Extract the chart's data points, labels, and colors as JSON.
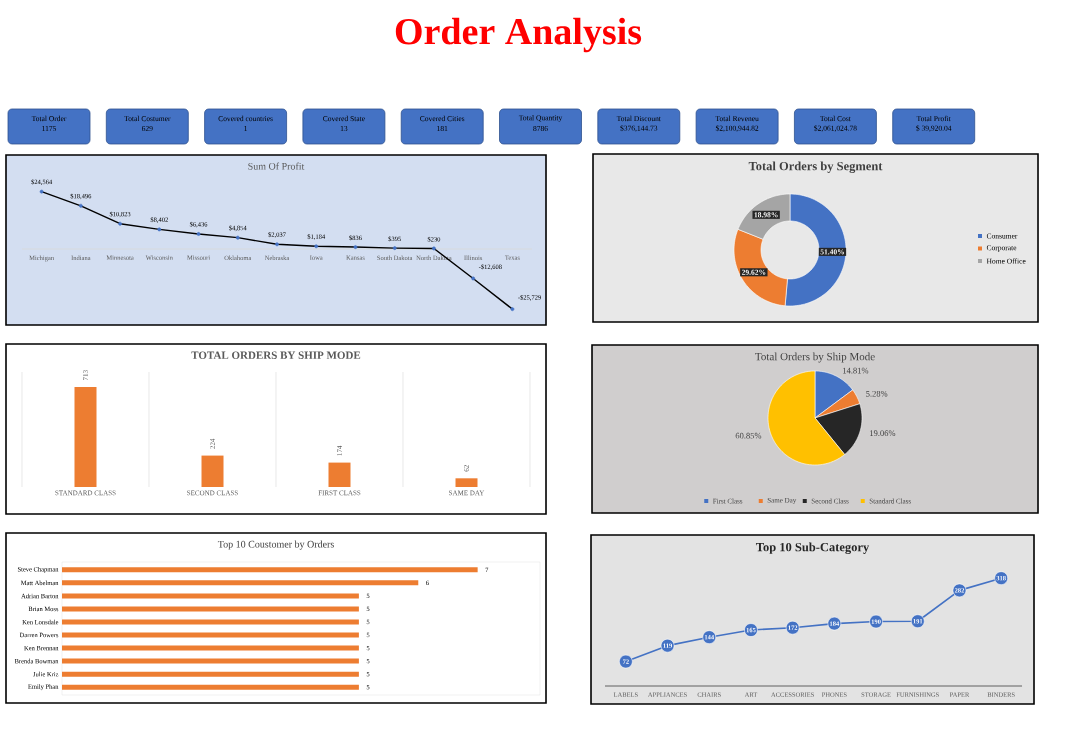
{
  "chart_data": [
    {
      "type": "other",
      "title": "Order Analysis",
      "annotations": [
        "Total Order",
        "1175",
        "Total Costumer",
        "629",
        "Covered countries",
        "1",
        "Covered State",
        "13",
        "Covered Cities",
        "181",
        "Total Quantity",
        "8786",
        "Total Discount",
        "$376,144.73",
        "Total Reveneu",
        "$2,100,944.82",
        "Total Cost",
        "$2,061,024.78",
        "Total Profit",
        "$  39,920.04"
      ]
    },
    {
      "type": "line",
      "title": "Sum Of Profit",
      "categories": [
        "Michigan",
        "Indiana",
        "Minnesota",
        "Wisconsin",
        "Missouri",
        "Oklahoma",
        "Nebraska",
        "Iowa",
        "Kansas",
        "South Dakota",
        "North Dakota",
        "Illinois",
        "Texas"
      ],
      "values": [
        24564,
        18496,
        10823,
        8402,
        6436,
        4854,
        2037,
        1184,
        836,
        395,
        230,
        -12608,
        -25729
      ],
      "value_labels": [
        "$24,564",
        "$18,496",
        "$10,823",
        "$8,402",
        "$6,436",
        "$4,854",
        "$2,037",
        "$1,184",
        "$836",
        "$395",
        "$230",
        "-$12,608",
        "-$25,729"
      ],
      "color": "#000000",
      "marker": "circle"
    },
    {
      "type": "donut",
      "title": "Total Orders by Segment",
      "categories": [
        "Consumer",
        "Corporate",
        "Home Office"
      ],
      "values": [
        51.4,
        29.62,
        18.98
      ],
      "value_labels": [
        "51.40%",
        "29.62%",
        "18.98%"
      ],
      "colors": [
        "#4472c4",
        "#ed7d31",
        "#a5a5a5"
      ],
      "legend": "right"
    },
    {
      "type": "bar",
      "title": "TOTAL ORDERS BY SHIP MODE",
      "categories": [
        "STANDARD CLASS",
        "SECOND CLASS",
        "FIRST CLASS",
        "SAME DAY"
      ],
      "values": [
        713,
        224,
        174,
        62
      ],
      "color": "#ed7d31",
      "data_labels": true,
      "grid": "x"
    },
    {
      "type": "pie",
      "title": "Total Orders by Ship Mode",
      "categories": [
        "First Class",
        "Same Day",
        "Second Class",
        "Standard Class"
      ],
      "values": [
        14.81,
        5.28,
        19.06,
        60.85
      ],
      "value_labels": [
        "14.81%",
        "5.28%",
        "19.06%",
        "60.85%"
      ],
      "colors": [
        "#4472c4",
        "#ed7d31",
        "#262626",
        "#ffc000"
      ],
      "legend": "bottom"
    },
    {
      "type": "bar",
      "orientation": "horizontal",
      "title": "Top 10 Coustomer by Orders",
      "categories": [
        "Steve Chapman",
        "Matt Abelman",
        "Adrian Barton",
        "Brian Moss",
        "Ken Lonsdale",
        "Darren Powers",
        "Ken Brennan",
        "Brenda Bowman",
        "Julie Kriz",
        "Emily Phan"
      ],
      "values": [
        7,
        6,
        5,
        5,
        5,
        5,
        5,
        5,
        5,
        5
      ],
      "color": "#ed7d31",
      "data_labels": true
    },
    {
      "type": "line",
      "title": "Top 10 Sub-Category",
      "categories": [
        "LABELS",
        "APPLIANCES",
        "CHAIRS",
        "ART",
        "ACCESSORIES",
        "PHONES",
        "STORAGE",
        "FURNISHINGS",
        "PAPER",
        "BINDERS"
      ],
      "values": [
        72,
        119,
        144,
        165,
        172,
        184,
        190,
        191,
        282,
        318
      ],
      "color": "#4472c4",
      "marker": "circle",
      "data_labels": true
    }
  ]
}
